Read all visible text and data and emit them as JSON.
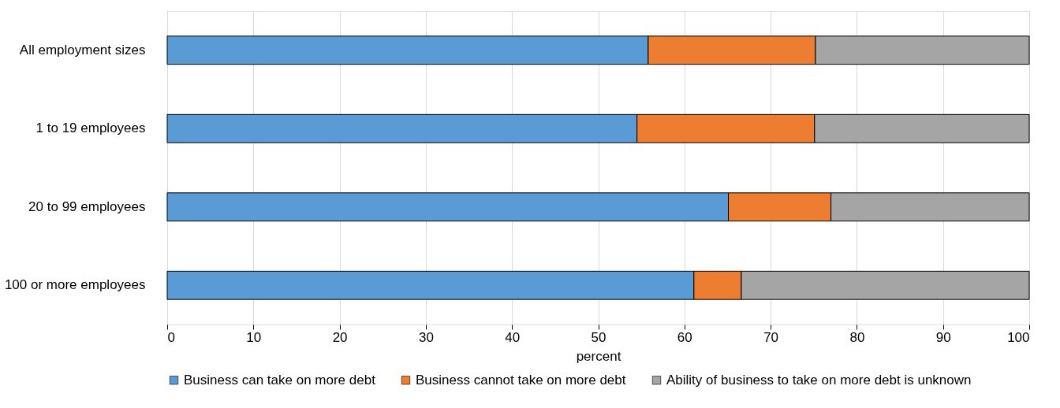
{
  "chart_data": {
    "type": "bar",
    "orientation": "horizontal",
    "stacked": true,
    "xlabel": "percent",
    "categories": [
      "All employment sizes",
      "1 to 19 employees",
      "20 to 99 employees",
      "100 or more employees"
    ],
    "series": [
      {
        "name": "Business can take on more debt",
        "color": "#5b9bd5",
        "values": [
          55.8,
          54.5,
          65.1,
          61.1
        ]
      },
      {
        "name": "Business cannot take on more debt",
        "color": "#ed7d31",
        "values": [
          19.4,
          20.6,
          11.9,
          5.5
        ]
      },
      {
        "name": "Ability of business to take on more debt is unknown",
        "color": "#a5a5a5",
        "values": [
          24.8,
          24.9,
          23.0,
          33.4
        ]
      }
    ],
    "xlim": [
      0,
      100
    ],
    "xticks": [
      0,
      10,
      20,
      30,
      40,
      50,
      60,
      70,
      80,
      90,
      100
    ],
    "grid": "x",
    "legend": "bottom"
  }
}
